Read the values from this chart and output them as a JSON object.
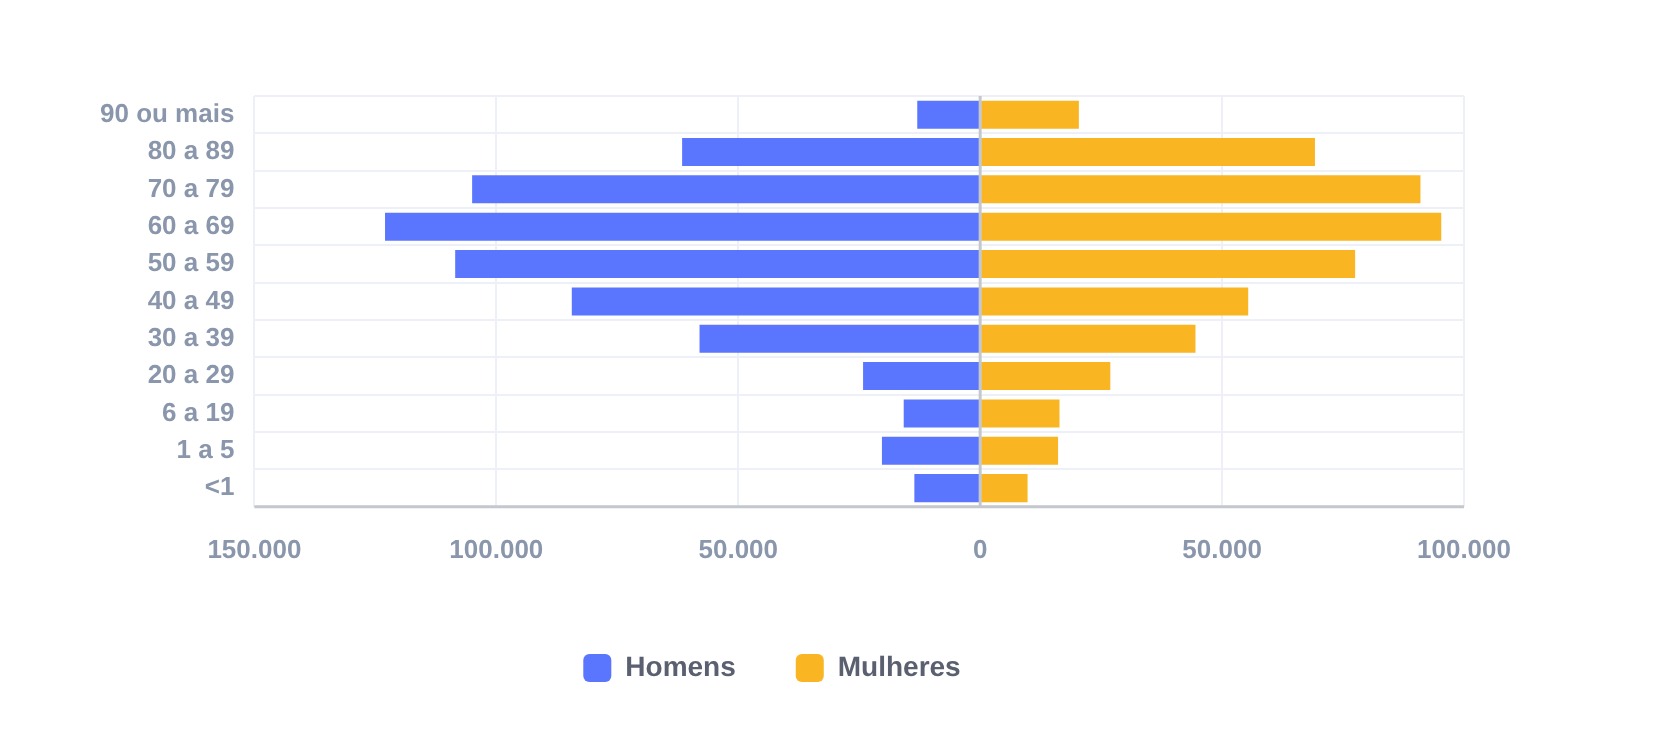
{
  "chart_data": {
    "type": "bar",
    "orientation": "horizontal",
    "stacked": true,
    "categories": [
      "90 ou mais",
      "80 a 89",
      "70 a 79",
      "60 a 69",
      "50 a 59",
      "40 a 49",
      "30 a 39",
      "20 a 29",
      "6 a 19",
      "1 a 5",
      "<1"
    ],
    "series": [
      {
        "name": "Homens",
        "color": "#5b76fe",
        "values": [
          -13000,
          -61600,
          -105000,
          -123000,
          -108500,
          -84400,
          -58000,
          -24200,
          -15800,
          -20300,
          -13600
        ]
      },
      {
        "name": "Mulheres",
        "color": "#fab523",
        "values": [
          20400,
          69200,
          91000,
          95300,
          77500,
          55400,
          44500,
          26900,
          16400,
          16100,
          9800
        ]
      }
    ],
    "xlim": [
      -150000,
      100000
    ],
    "xticks": [
      {
        "value": -150000,
        "label": "150.000"
      },
      {
        "value": -100000,
        "label": "100.000"
      },
      {
        "value": -50000,
        "label": "50.000"
      },
      0,
      {
        "value": 50000,
        "label": "50.000"
      },
      {
        "value": 100000,
        "label": "100.000"
      }
    ],
    "grid": true,
    "legend": "bottom"
  }
}
